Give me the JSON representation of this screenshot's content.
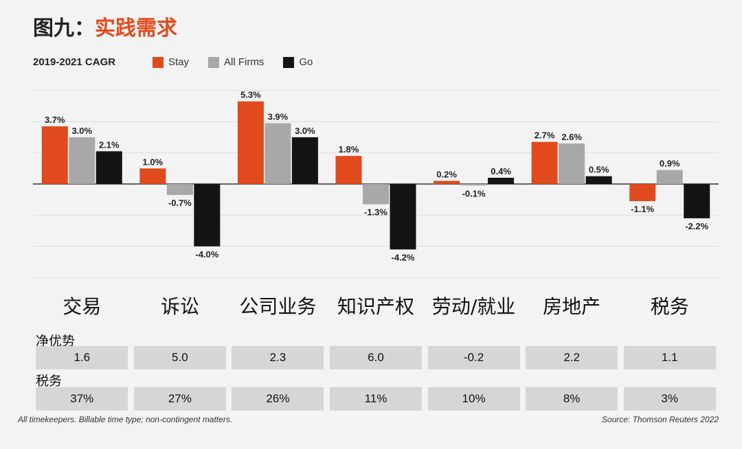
{
  "title": {
    "prefix": "图九：",
    "accent": "实践需求"
  },
  "colors": {
    "Stay": "#e04a1c",
    "All Firms": "#a8a8a8",
    "Go": "#141414"
  },
  "chart_data": {
    "type": "bar",
    "subtitle": "2019-2021 CAGR",
    "categories": [
      "交易",
      "诉讼",
      "公司业务",
      "知识产权",
      "劳动/就业",
      "房地产",
      "税务"
    ],
    "series": [
      {
        "name": "Stay",
        "values": [
          3.7,
          1.0,
          5.3,
          1.8,
          0.2,
          2.7,
          -1.1
        ],
        "labels": [
          "3.7%",
          "1.0%",
          "5.3%",
          "1.8%",
          "0.2%",
          "2.7%",
          "-1.1%"
        ]
      },
      {
        "name": "All Firms",
        "values": [
          3.0,
          -0.7,
          3.9,
          -1.3,
          -0.1,
          2.6,
          0.9
        ],
        "labels": [
          "3.0%",
          "-0.7%",
          "3.9%",
          "-1.3%",
          "-0.1%",
          "2.6%",
          "0.9%"
        ]
      },
      {
        "name": "Go",
        "values": [
          2.1,
          -4.0,
          3.0,
          -4.2,
          0.4,
          0.5,
          -2.2
        ],
        "labels": [
          "2.1%",
          "-4.0%",
          "3.0%",
          "-4.2%",
          "0.4%",
          "0.5%",
          "-2.2%"
        ]
      }
    ],
    "ylim": [
      -6,
      6
    ],
    "grid": true,
    "legend_position": "top"
  },
  "table": {
    "rows": [
      {
        "label": "净优势",
        "values": [
          "1.6",
          "5.0",
          "2.3",
          "6.0",
          "-0.2",
          "2.2",
          "1.1"
        ]
      },
      {
        "label": "税务",
        "values": [
          "37%",
          "27%",
          "26%",
          "11%",
          "10%",
          "8%",
          "3%"
        ]
      }
    ]
  },
  "footnote": {
    "left": "All timekeepers. Billable time type; non-contingent matters.",
    "right": "Source: Thomson Reuters 2022"
  }
}
